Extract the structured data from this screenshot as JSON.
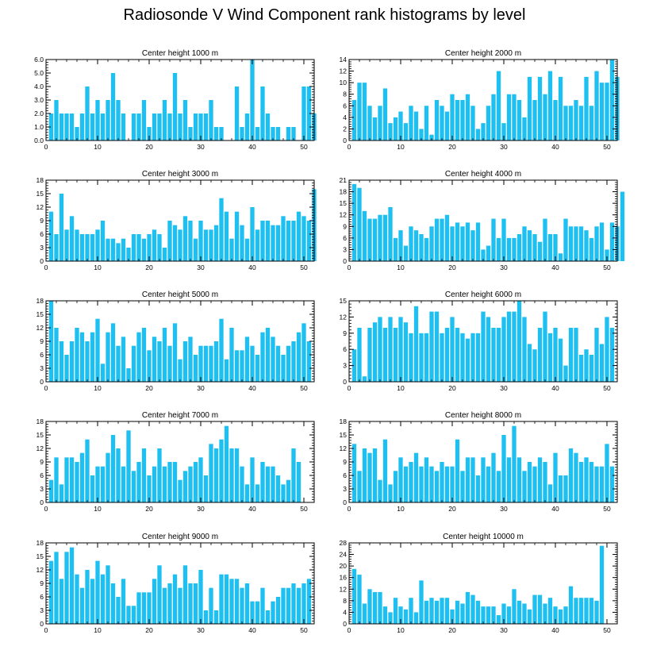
{
  "title": "Radiosonde V Wind Component rank histograms by level",
  "bar_color": "#1ec0f2",
  "chart_data": [
    {
      "type": "bar",
      "title": "Center height 1000 m",
      "xlim": [
        0,
        52
      ],
      "xticks": [
        0,
        10,
        20,
        30,
        40,
        50
      ],
      "ylim": [
        0,
        6
      ],
      "yticks": [
        0,
        1,
        2,
        3,
        4,
        5,
        6
      ],
      "ytick_labels": [
        "0.0",
        "1.0",
        "2.0",
        "3.0",
        "4.0",
        "5.0",
        "6.0"
      ],
      "values": [
        2,
        3,
        2,
        2,
        2,
        1,
        2,
        4,
        2,
        3,
        2,
        3,
        5,
        3,
        2,
        0,
        2,
        2,
        3,
        1,
        2,
        2,
        3,
        2,
        5,
        2,
        3,
        1,
        2,
        2,
        2,
        3,
        1,
        1,
        0,
        0,
        4,
        1,
        2,
        6,
        1,
        4,
        2,
        1,
        1,
        0,
        1,
        1,
        0,
        4,
        4,
        2
      ]
    },
    {
      "type": "bar",
      "title": "Center height 2000 m",
      "xlim": [
        0,
        52
      ],
      "xticks": [
        0,
        10,
        20,
        30,
        40,
        50
      ],
      "ylim": [
        0,
        14
      ],
      "yticks": [
        0,
        2,
        4,
        6,
        8,
        10,
        12,
        14
      ],
      "ytick_labels": [
        "0",
        "2",
        "4",
        "6",
        "8",
        "10",
        "12",
        "14"
      ],
      "values": [
        7,
        10,
        10,
        6,
        4,
        6,
        9,
        3,
        4,
        5,
        3,
        6,
        5,
        2,
        6,
        1,
        7,
        6,
        5,
        8,
        7,
        7,
        8,
        6,
        2,
        3,
        6,
        8,
        12,
        3,
        8,
        8,
        7,
        4,
        11,
        7,
        11,
        8,
        12,
        7,
        11,
        6,
        6,
        7,
        6,
        11,
        6,
        12,
        10,
        10,
        14,
        11
      ]
    },
    {
      "type": "bar",
      "title": "Center height 3000 m",
      "xlim": [
        0,
        52
      ],
      "xticks": [
        0,
        10,
        20,
        30,
        40,
        50
      ],
      "ylim": [
        0,
        18
      ],
      "yticks": [
        0,
        3,
        6,
        9,
        12,
        15,
        18
      ],
      "ytick_labels": [
        "0",
        "3",
        "6",
        "9",
        "12",
        "15",
        "18"
      ],
      "values": [
        11,
        6,
        15,
        7,
        10,
        7,
        6,
        6,
        6,
        7,
        9,
        5,
        5,
        4,
        5,
        3,
        6,
        6,
        5,
        6,
        7,
        6,
        3,
        9,
        8,
        7,
        10,
        9,
        5,
        9,
        7,
        7,
        8,
        14,
        11,
        5,
        11,
        8,
        5,
        12,
        7,
        9,
        9,
        8,
        8,
        10,
        9,
        9,
        11,
        10,
        9,
        16
      ]
    },
    {
      "type": "bar",
      "title": "Center height 4000 m",
      "xlim": [
        0,
        52
      ],
      "xticks": [
        0,
        10,
        20,
        30,
        40,
        50
      ],
      "ylim": [
        0,
        21
      ],
      "yticks": [
        0,
        3,
        6,
        9,
        12,
        15,
        18,
        21
      ],
      "ytick_labels": [
        "0",
        "3",
        "6",
        "9",
        "12",
        "15",
        "18",
        "21"
      ],
      "values": [
        20,
        19,
        13,
        11,
        11,
        12,
        12,
        14,
        6,
        8,
        4,
        9,
        8,
        7,
        6,
        9,
        11,
        11,
        12,
        9,
        10,
        9,
        10,
        8,
        10,
        3,
        4,
        11,
        6,
        11,
        6,
        6,
        7,
        9,
        8,
        7,
        5,
        11,
        7,
        7,
        2,
        11,
        9,
        9,
        9,
        8,
        6,
        9,
        10,
        3,
        10,
        9,
        18
      ]
    },
    {
      "type": "bar",
      "title": "Center height 5000 m",
      "xlim": [
        0,
        52
      ],
      "xticks": [
        0,
        10,
        20,
        30,
        40,
        50
      ],
      "ylim": [
        0,
        18
      ],
      "yticks": [
        0,
        3,
        6,
        9,
        12,
        15,
        18
      ],
      "ytick_labels": [
        "0",
        "3",
        "6",
        "9",
        "12",
        "15",
        "18"
      ],
      "values": [
        18,
        12,
        9,
        6,
        9,
        12,
        11,
        9,
        11,
        14,
        4,
        11,
        13,
        8,
        10,
        3,
        8,
        11,
        12,
        7,
        10,
        9,
        12,
        8,
        13,
        5,
        9,
        10,
        6,
        8,
        8,
        8,
        9,
        14,
        5,
        12,
        7,
        7,
        10,
        8,
        6,
        11,
        12,
        10,
        8,
        6,
        8,
        9,
        11,
        13,
        9
      ]
    },
    {
      "type": "bar",
      "title": "Center height 6000 m",
      "xlim": [
        0,
        52
      ],
      "xticks": [
        0,
        10,
        20,
        30,
        40,
        50
      ],
      "ylim": [
        0,
        15
      ],
      "yticks": [
        0,
        3,
        6,
        9,
        12,
        15
      ],
      "ytick_labels": [
        "0",
        "3",
        "6",
        "9",
        "12",
        "15"
      ],
      "values": [
        6,
        10,
        1,
        10,
        11,
        12,
        10,
        12,
        10,
        12,
        11,
        9,
        14,
        9,
        9,
        13,
        13,
        9,
        10,
        12,
        10,
        9,
        8,
        9,
        9,
        13,
        12,
        10,
        10,
        12,
        13,
        13,
        15,
        12,
        7,
        6,
        10,
        13,
        9,
        10,
        8,
        3,
        10,
        10,
        5,
        6,
        5,
        10,
        7,
        12,
        10
      ]
    },
    {
      "type": "bar",
      "title": "Center height 7000 m",
      "xlim": [
        0,
        52
      ],
      "xticks": [
        0,
        10,
        20,
        30,
        40,
        50
      ],
      "ylim": [
        0,
        18
      ],
      "yticks": [
        0,
        3,
        6,
        9,
        12,
        15,
        18
      ],
      "ytick_labels": [
        "0",
        "3",
        "6",
        "9",
        "12",
        "15",
        "18"
      ],
      "values": [
        5,
        10,
        4,
        10,
        10,
        9,
        11,
        14,
        6,
        8,
        8,
        11,
        15,
        12,
        8,
        16,
        7,
        9,
        12,
        6,
        8,
        12,
        8,
        9,
        9,
        5,
        7,
        8,
        9,
        10,
        6,
        13,
        12,
        14,
        17,
        12,
        12,
        8,
        4,
        10,
        4,
        9,
        8,
        8,
        6,
        4,
        5,
        12,
        9
      ]
    },
    {
      "type": "bar",
      "title": "Center height 8000 m",
      "xlim": [
        0,
        52
      ],
      "xticks": [
        0,
        10,
        20,
        30,
        40,
        50
      ],
      "ylim": [
        0,
        18
      ],
      "yticks": [
        0,
        3,
        6,
        9,
        12,
        15,
        18
      ],
      "ytick_labels": [
        "0",
        "3",
        "6",
        "9",
        "12",
        "15",
        "18"
      ],
      "values": [
        13,
        7,
        12,
        11,
        12,
        5,
        14,
        4,
        7,
        10,
        8,
        9,
        11,
        8,
        10,
        8,
        7,
        9,
        8,
        8,
        14,
        7,
        10,
        10,
        6,
        10,
        8,
        11,
        7,
        15,
        10,
        17,
        10,
        7,
        9,
        8,
        10,
        9,
        4,
        11,
        6,
        6,
        12,
        11,
        9,
        10,
        9,
        8,
        8,
        13,
        8
      ]
    },
    {
      "type": "bar",
      "title": "Center height 9000 m",
      "xlim": [
        0,
        52
      ],
      "xticks": [
        0,
        10,
        20,
        30,
        40,
        50
      ],
      "ylim": [
        0,
        18
      ],
      "yticks": [
        0,
        3,
        6,
        9,
        12,
        15,
        18
      ],
      "ytick_labels": [
        "0",
        "3",
        "6",
        "9",
        "12",
        "15",
        "18"
      ],
      "values": [
        14,
        16,
        10,
        16,
        17,
        11,
        8,
        12,
        10,
        14,
        11,
        13,
        9,
        6,
        10,
        4,
        4,
        7,
        7,
        7,
        10,
        13,
        8,
        9,
        11,
        8,
        13,
        9,
        9,
        12,
        3,
        8,
        3,
        11,
        11,
        10,
        10,
        8,
        9,
        5,
        5,
        8,
        3,
        5,
        6,
        8,
        8,
        9,
        8,
        9,
        10
      ]
    },
    {
      "type": "bar",
      "title": "Center height 10000 m",
      "xlim": [
        0,
        52
      ],
      "xticks": [
        0,
        10,
        20,
        30,
        40,
        50
      ],
      "ylim": [
        0,
        28
      ],
      "yticks": [
        0,
        4,
        8,
        12,
        16,
        20,
        24,
        28
      ],
      "ytick_labels": [
        "0",
        "4",
        "8",
        "12",
        "16",
        "20",
        "24",
        "28"
      ],
      "values": [
        19,
        17,
        7,
        12,
        11,
        11,
        6,
        4,
        9,
        6,
        5,
        9,
        4,
        15,
        8,
        9,
        8,
        9,
        9,
        5,
        8,
        7,
        11,
        10,
        8,
        6,
        6,
        6,
        3,
        7,
        6,
        12,
        8,
        7,
        5,
        10,
        10,
        7,
        9,
        6,
        5,
        6,
        13,
        9,
        9,
        9,
        9,
        8,
        27
      ]
    }
  ]
}
